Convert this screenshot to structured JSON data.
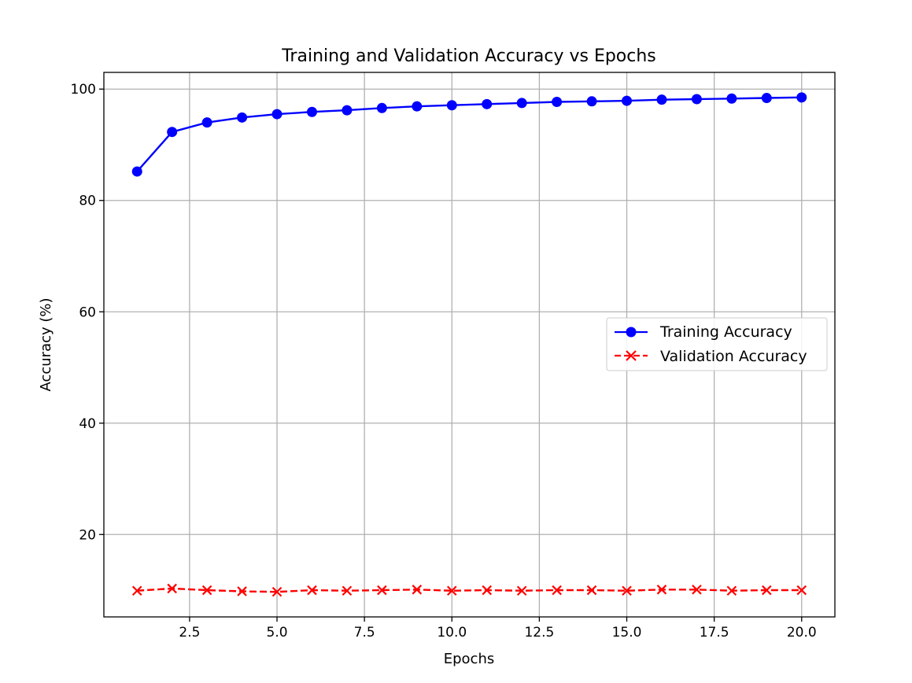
{
  "chart_data": {
    "type": "line",
    "title": "Training and Validation Accuracy vs Epochs",
    "xlabel": "Epochs",
    "ylabel": "Accuracy (%)",
    "xlim": [
      0.05,
      20.95
    ],
    "ylim": [
      5.2,
      103.0
    ],
    "xticks": [
      2.5,
      5.0,
      7.5,
      10.0,
      12.5,
      15.0,
      17.5,
      20.0
    ],
    "xtick_labels": [
      "2.5",
      "5.0",
      "7.5",
      "10.0",
      "12.5",
      "15.0",
      "17.5",
      "20.0"
    ],
    "yticks": [
      20,
      40,
      60,
      80,
      100
    ],
    "ytick_labels": [
      "20",
      "40",
      "60",
      "80",
      "100"
    ],
    "grid": true,
    "legend_position": "center-right",
    "x": [
      1,
      2,
      3,
      4,
      5,
      6,
      7,
      8,
      9,
      10,
      11,
      12,
      13,
      14,
      15,
      16,
      17,
      18,
      19,
      20
    ],
    "series": [
      {
        "name": "Training Accuracy",
        "color": "#0000ff",
        "marker": "circle",
        "line_style": "solid",
        "values": [
          85.2,
          92.3,
          94.0,
          94.9,
          95.5,
          95.9,
          96.2,
          96.6,
          96.9,
          97.1,
          97.3,
          97.5,
          97.7,
          97.8,
          97.9,
          98.1,
          98.2,
          98.3,
          98.4,
          98.5
        ]
      },
      {
        "name": "Validation Accuracy",
        "color": "#ff0000",
        "marker": "x",
        "line_style": "dashed",
        "values": [
          9.9,
          10.3,
          10.0,
          9.8,
          9.7,
          10.0,
          9.9,
          10.0,
          10.1,
          9.9,
          10.0,
          9.9,
          10.0,
          10.0,
          9.9,
          10.1,
          10.1,
          9.9,
          10.0,
          10.0
        ]
      }
    ]
  }
}
